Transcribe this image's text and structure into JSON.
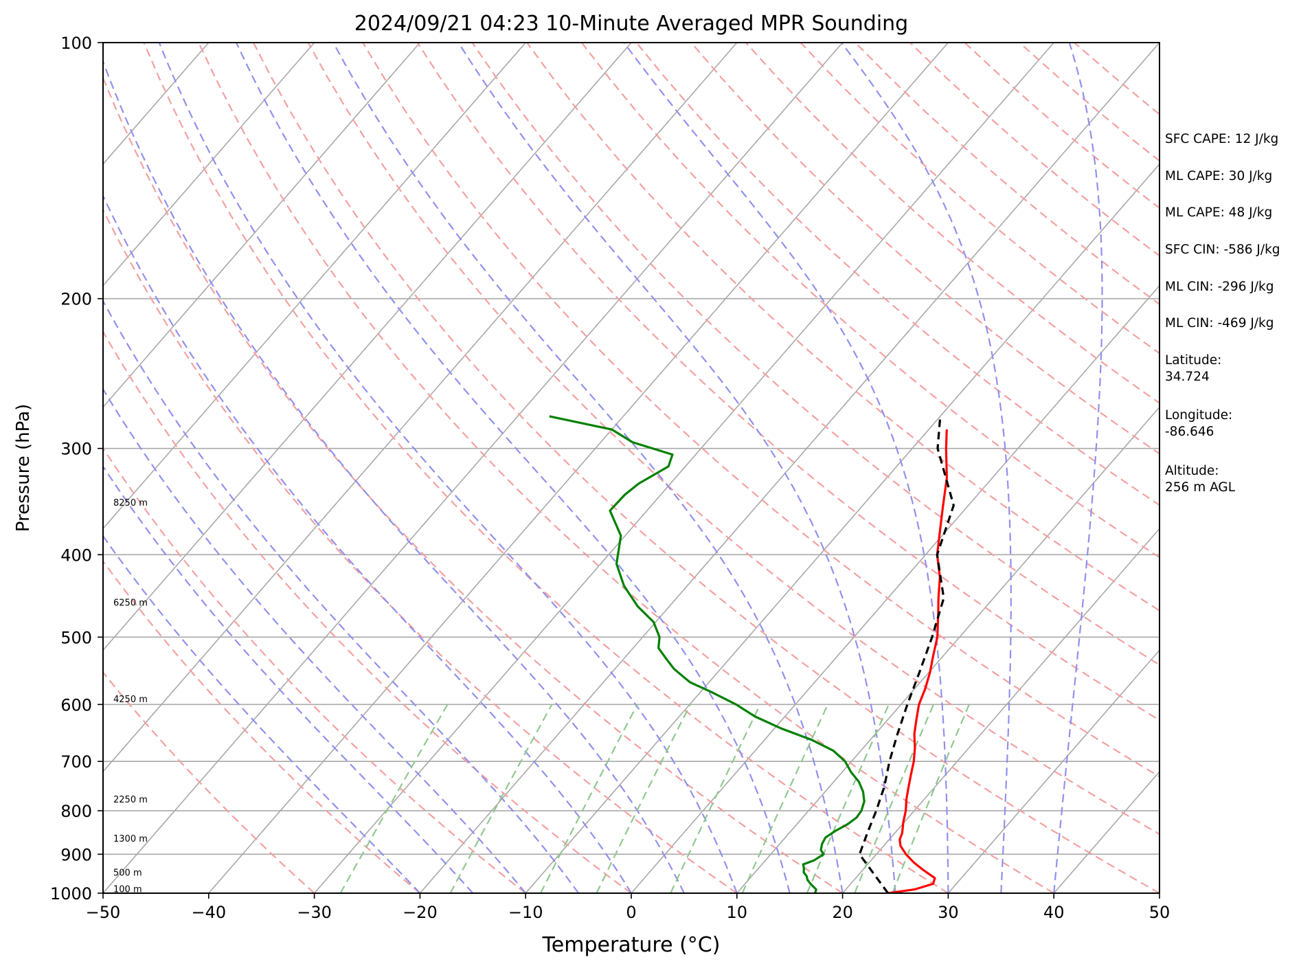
{
  "chart_data": {
    "type": "line",
    "title": "2024/09/21 04:23 10-Minute Averaged MPR Sounding",
    "xlabel": "Temperature (°C)",
    "ylabel": "Pressure (hPa)",
    "xlim": [
      -50,
      50
    ],
    "ylim": [
      1000,
      100
    ],
    "y_scale": "log",
    "x_ticks": [
      "−50",
      "−40",
      "−30",
      "−20",
      "−10",
      "0",
      "10",
      "20",
      "30",
      "40",
      "50"
    ],
    "x_tick_values": [
      -50,
      -40,
      -30,
      -20,
      -10,
      0,
      10,
      20,
      30,
      40,
      50
    ],
    "y_ticks": [
      "100",
      "200",
      "300",
      "400",
      "500",
      "600",
      "700",
      "800",
      "900",
      "1000"
    ],
    "y_tick_values": [
      100,
      200,
      300,
      400,
      500,
      600,
      700,
      800,
      900,
      1000
    ],
    "grid": true,
    "series": [
      {
        "key": "temperature",
        "color": "#ff0000",
        "dashed": false,
        "points": [
          [
            1000,
            24.3
          ],
          [
            990,
            26.5
          ],
          [
            975,
            27.8
          ],
          [
            960,
            27.5
          ],
          [
            940,
            25.8
          ],
          [
            920,
            24.2
          ],
          [
            900,
            22.8
          ],
          [
            880,
            21.6
          ],
          [
            865,
            21.0
          ],
          [
            850,
            20.7
          ],
          [
            825,
            19.9
          ],
          [
            800,
            19.2
          ],
          [
            775,
            18.3
          ],
          [
            750,
            17.5
          ],
          [
            725,
            16.7
          ],
          [
            700,
            15.9
          ],
          [
            675,
            14.9
          ],
          [
            650,
            13.7
          ],
          [
            625,
            12.7
          ],
          [
            600,
            11.7
          ],
          [
            575,
            11.0
          ],
          [
            550,
            10.1
          ],
          [
            525,
            9.0
          ],
          [
            500,
            7.9
          ],
          [
            470,
            6.1
          ],
          [
            450,
            4.8
          ],
          [
            425,
            3.2
          ],
          [
            400,
            1.1
          ],
          [
            375,
            -0.6
          ],
          [
            350,
            -2.4
          ],
          [
            325,
            -4.3
          ],
          [
            300,
            -6.8
          ],
          [
            285,
            -8.3
          ]
        ]
      },
      {
        "key": "dewpoint",
        "color": "#008000",
        "dashed": false,
        "points": [
          [
            1000,
            17.4
          ],
          [
            990,
            17.2
          ],
          [
            975,
            16.2
          ],
          [
            965,
            15.6
          ],
          [
            955,
            15.2
          ],
          [
            945,
            14.6
          ],
          [
            935,
            14.3
          ],
          [
            925,
            13.9
          ],
          [
            915,
            14.6
          ],
          [
            900,
            15.0
          ],
          [
            890,
            14.4
          ],
          [
            875,
            14.0
          ],
          [
            860,
            13.8
          ],
          [
            845,
            14.2
          ],
          [
            830,
            14.8
          ],
          [
            815,
            15.1
          ],
          [
            800,
            15.0
          ],
          [
            780,
            14.5
          ],
          [
            760,
            13.6
          ],
          [
            740,
            12.4
          ],
          [
            720,
            10.8
          ],
          [
            700,
            9.4
          ],
          [
            680,
            7.4
          ],
          [
            660,
            4.4
          ],
          [
            640,
            0.6
          ],
          [
            620,
            -2.8
          ],
          [
            600,
            -5.6
          ],
          [
            580,
            -9.0
          ],
          [
            565,
            -11.8
          ],
          [
            545,
            -14.4
          ],
          [
            530,
            -16.0
          ],
          [
            515,
            -17.6
          ],
          [
            500,
            -18.4
          ],
          [
            480,
            -20.2
          ],
          [
            460,
            -23.0
          ],
          [
            435,
            -26.0
          ],
          [
            410,
            -28.5
          ],
          [
            380,
            -30.4
          ],
          [
            355,
            -33.5
          ],
          [
            340,
            -33.4
          ],
          [
            330,
            -33.0
          ],
          [
            315,
            -31.6
          ],
          [
            305,
            -32.2
          ],
          [
            295,
            -37.0
          ],
          [
            285,
            -40.0
          ],
          [
            275,
            -47.0
          ]
        ]
      },
      {
        "key": "parcel",
        "color": "#000000",
        "dashed": true,
        "points": [
          [
            1000,
            24.3
          ],
          [
            900,
            18.4
          ],
          [
            850,
            17.4
          ],
          [
            800,
            16.4
          ],
          [
            750,
            15.2
          ],
          [
            700,
            13.6
          ],
          [
            650,
            12.1
          ],
          [
            600,
            10.6
          ],
          [
            550,
            9.1
          ],
          [
            500,
            7.4
          ],
          [
            450,
            5.3
          ],
          [
            400,
            1.1
          ],
          [
            350,
            -1.4
          ],
          [
            300,
            -7.6
          ],
          [
            275,
            -10.0
          ]
        ]
      }
    ],
    "height_labels": [
      {
        "text": "100 m",
        "p": 988
      },
      {
        "text": "500 m",
        "p": 945
      },
      {
        "text": "1300 m",
        "p": 862
      },
      {
        "text": "2250 m",
        "p": 775
      },
      {
        "text": "4250 m",
        "p": 591
      },
      {
        "text": "6250 m",
        "p": 455
      },
      {
        "text": "8250 m",
        "p": 347
      }
    ],
    "indices": [
      "SFC CAPE: 12 J/kg",
      "ML CAPE: 30 J/kg",
      "ML CAPE: 48 J/kg",
      "SFC CIN: -586 J/kg",
      "ML CIN: -296 J/kg",
      "ML CIN: -469 J/kg"
    ],
    "site": {
      "latitude": "Latitude:\n34.724",
      "longitude": "Longitude:\n-86.646",
      "altitude": "Altitude:\n256 m AGL"
    },
    "colors": {
      "dry_adiabat": "#f4a0a0",
      "moist_adiabat": "#9090ee",
      "mixing_ratio": "#90c890",
      "isotherm": "#a8a8a8"
    }
  }
}
